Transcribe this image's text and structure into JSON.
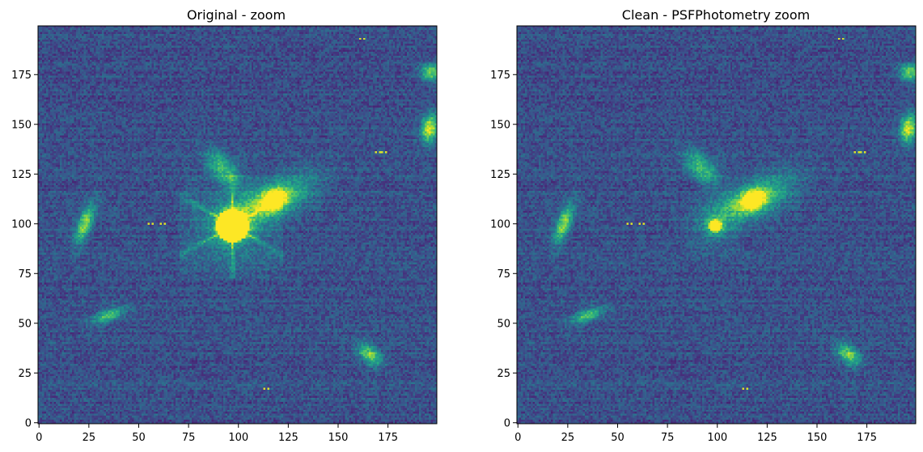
{
  "chart_data": [
    {
      "type": "heatmap",
      "title": "Original - zoom",
      "xlim": [
        0,
        199
      ],
      "ylim": [
        0,
        199
      ],
      "xticks": [
        0,
        25,
        50,
        75,
        100,
        125,
        150,
        175
      ],
      "yticks": [
        0,
        25,
        50,
        75,
        100,
        125,
        150,
        175
      ],
      "colormap": "viridis",
      "background_level": 0.25,
      "sources": [
        {
          "label": "saturated-star",
          "x": 97,
          "y": 99,
          "sigma_x": 5,
          "sigma_y": 5,
          "peak": 1.0,
          "saturated": true,
          "spikes": true
        },
        {
          "label": "galaxy-large",
          "x": 118,
          "y": 112,
          "sigma_x": 14,
          "sigma_y": 6,
          "angle": 25,
          "peak": 0.55
        },
        {
          "label": "galaxy-core",
          "x": 118,
          "y": 112,
          "sigma_x": 4,
          "sigma_y": 3,
          "angle": 25,
          "peak": 0.75
        },
        {
          "label": "galaxy-arm",
          "x": 92,
          "y": 128,
          "sigma_x": 7,
          "sigma_y": 4,
          "angle": -45,
          "peak": 0.45
        },
        {
          "label": "galaxy-left",
          "x": 23,
          "y": 100,
          "sigma_x": 7,
          "sigma_y": 2.5,
          "angle": 70,
          "peak": 0.6
        },
        {
          "label": "galaxy-lower-left",
          "x": 35,
          "y": 54,
          "sigma_x": 6,
          "sigma_y": 2,
          "angle": 20,
          "peak": 0.5
        },
        {
          "label": "galaxy-lower-right",
          "x": 166,
          "y": 34,
          "sigma_x": 5,
          "sigma_y": 3,
          "angle": -40,
          "peak": 0.55
        },
        {
          "label": "galaxy-edge-right",
          "x": 196,
          "y": 148,
          "sigma_x": 5,
          "sigma_y": 3,
          "angle": 80,
          "peak": 0.7
        },
        {
          "label": "galaxy-edge-top-right",
          "x": 197,
          "y": 176,
          "sigma_x": 4,
          "sigma_y": 3,
          "angle": 0,
          "peak": 0.55
        }
      ],
      "hot_pixels": [
        {
          "x": 161,
          "y": 193
        },
        {
          "x": 169,
          "y": 136
        },
        {
          "x": 172,
          "y": 136
        },
        {
          "x": 55,
          "y": 100
        },
        {
          "x": 61,
          "y": 100
        },
        {
          "x": 113,
          "y": 17
        }
      ]
    },
    {
      "type": "heatmap",
      "title": "Clean - PSFPhotometry zoom",
      "xlim": [
        0,
        199
      ],
      "ylim": [
        0,
        199
      ],
      "xticks": [
        0,
        25,
        50,
        75,
        100,
        125,
        150,
        175
      ],
      "yticks": [
        0,
        25,
        50,
        75,
        100,
        125,
        150,
        175
      ],
      "colormap": "viridis",
      "background_level": 0.25,
      "sources": [
        {
          "label": "star-residual",
          "x": 99,
          "y": 99,
          "sigma_x": 2.2,
          "sigma_y": 2.2,
          "peak": 1.0,
          "saturated": true,
          "ring": true
        },
        {
          "label": "galaxy-large",
          "x": 118,
          "y": 112,
          "sigma_x": 14,
          "sigma_y": 6,
          "angle": 25,
          "peak": 0.55
        },
        {
          "label": "galaxy-core",
          "x": 118,
          "y": 112,
          "sigma_x": 4,
          "sigma_y": 3,
          "angle": 25,
          "peak": 0.75
        },
        {
          "label": "galaxy-arm",
          "x": 92,
          "y": 128,
          "sigma_x": 7,
          "sigma_y": 4,
          "angle": -45,
          "peak": 0.45
        },
        {
          "label": "galaxy-left",
          "x": 23,
          "y": 100,
          "sigma_x": 7,
          "sigma_y": 2.5,
          "angle": 70,
          "peak": 0.6
        },
        {
          "label": "galaxy-lower-left",
          "x": 35,
          "y": 54,
          "sigma_x": 6,
          "sigma_y": 2,
          "angle": 20,
          "peak": 0.5
        },
        {
          "label": "galaxy-lower-right",
          "x": 166,
          "y": 34,
          "sigma_x": 5,
          "sigma_y": 3,
          "angle": -40,
          "peak": 0.55
        },
        {
          "label": "galaxy-edge-right",
          "x": 196,
          "y": 148,
          "sigma_x": 5,
          "sigma_y": 3,
          "angle": 80,
          "peak": 0.7
        },
        {
          "label": "galaxy-edge-top-right",
          "x": 197,
          "y": 176,
          "sigma_x": 4,
          "sigma_y": 3,
          "angle": 0,
          "peak": 0.55
        }
      ],
      "hot_pixels": [
        {
          "x": 161,
          "y": 193
        },
        {
          "x": 169,
          "y": 136
        },
        {
          "x": 172,
          "y": 136
        },
        {
          "x": 55,
          "y": 100
        },
        {
          "x": 61,
          "y": 100
        },
        {
          "x": 113,
          "y": 17
        }
      ]
    }
  ]
}
